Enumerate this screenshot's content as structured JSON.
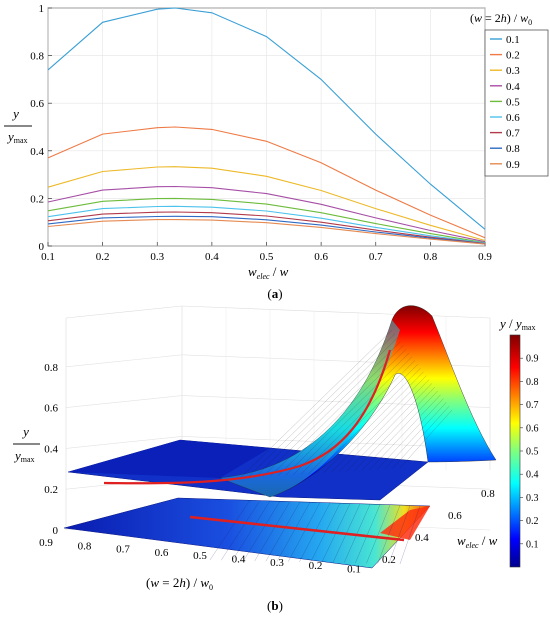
{
  "chart_data": [
    {
      "type": "line",
      "panel_label": "(a)",
      "xlabel": "w_elec / w",
      "ylabel": "y / y_max",
      "legend_title": "(w = 2h) / w0",
      "legend_position": "outside-right",
      "xlim": [
        0.1,
        0.9
      ],
      "ylim": [
        0,
        1
      ],
      "xticks": [
        "0.1",
        "0.2",
        "0.3",
        "0.4",
        "0.5",
        "0.6",
        "0.7",
        "0.8",
        "0.9"
      ],
      "yticks": [
        "0",
        "0.2",
        "0.4",
        "0.6",
        "0.8",
        "1"
      ],
      "x": [
        0.1,
        0.2,
        0.3,
        0.333,
        0.4,
        0.5,
        0.6,
        0.7,
        0.8,
        0.9
      ],
      "series": [
        {
          "name": "0.1",
          "color": "#3a9fd6",
          "values": [
            0.74,
            0.94,
            0.995,
            1.0,
            0.98,
            0.88,
            0.7,
            0.47,
            0.26,
            0.07
          ]
        },
        {
          "name": "0.2",
          "color": "#ee7a45",
          "values": [
            0.37,
            0.47,
            0.497,
            0.5,
            0.49,
            0.44,
            0.35,
            0.235,
            0.13,
            0.035
          ]
        },
        {
          "name": "0.3",
          "color": "#edb928",
          "values": [
            0.247,
            0.313,
            0.332,
            0.333,
            0.327,
            0.293,
            0.233,
            0.157,
            0.087,
            0.023
          ]
        },
        {
          "name": "0.4",
          "color": "#a64fa6",
          "values": [
            0.185,
            0.235,
            0.249,
            0.25,
            0.245,
            0.22,
            0.175,
            0.118,
            0.065,
            0.018
          ]
        },
        {
          "name": "0.5",
          "color": "#6dbc3c",
          "values": [
            0.148,
            0.188,
            0.199,
            0.2,
            0.196,
            0.176,
            0.14,
            0.094,
            0.052,
            0.014
          ]
        },
        {
          "name": "0.6",
          "color": "#4cc2ec",
          "values": [
            0.123,
            0.157,
            0.166,
            0.167,
            0.163,
            0.147,
            0.117,
            0.078,
            0.043,
            0.012
          ]
        },
        {
          "name": "0.7",
          "color": "#b23a4a",
          "values": [
            0.106,
            0.134,
            0.142,
            0.143,
            0.14,
            0.126,
            0.1,
            0.067,
            0.037,
            0.01
          ]
        },
        {
          "name": "0.8",
          "color": "#2f6ac4",
          "values": [
            0.093,
            0.118,
            0.124,
            0.125,
            0.123,
            0.11,
            0.088,
            0.059,
            0.033,
            0.009
          ]
        },
        {
          "name": "0.9",
          "color": "#e58a52",
          "values": [
            0.082,
            0.104,
            0.111,
            0.111,
            0.109,
            0.098,
            0.078,
            0.052,
            0.029,
            0.008
          ]
        }
      ]
    },
    {
      "type": "surface",
      "panel_label": "(b)",
      "zlabel": "y / y_max",
      "xlabel": "(w = 2h) / w0",
      "ylabel": "w_elec / w",
      "colorbar_title": "y / y_max",
      "colorbar_ticks": [
        "0.1",
        "0.2",
        "0.3",
        "0.4",
        "0.5",
        "0.6",
        "0.7",
        "0.8",
        "0.9"
      ],
      "colormap": "jet",
      "z_ticks": [
        "0",
        "0.2",
        "0.4",
        "0.6",
        "0.8"
      ],
      "x_ticks": [
        "0.9",
        "0.8",
        "0.7",
        "0.6",
        "0.5",
        "0.4",
        "0.3",
        "0.2",
        "0.1"
      ],
      "y_ticks": [
        "0.2",
        "0.4",
        "0.6",
        "0.8"
      ],
      "zlim": [
        0,
        1
      ],
      "xlim": [
        0.1,
        0.9
      ],
      "ylim": [
        0.1,
        0.9
      ],
      "highlight_line_color": "#e02020",
      "grid": true
    }
  ]
}
